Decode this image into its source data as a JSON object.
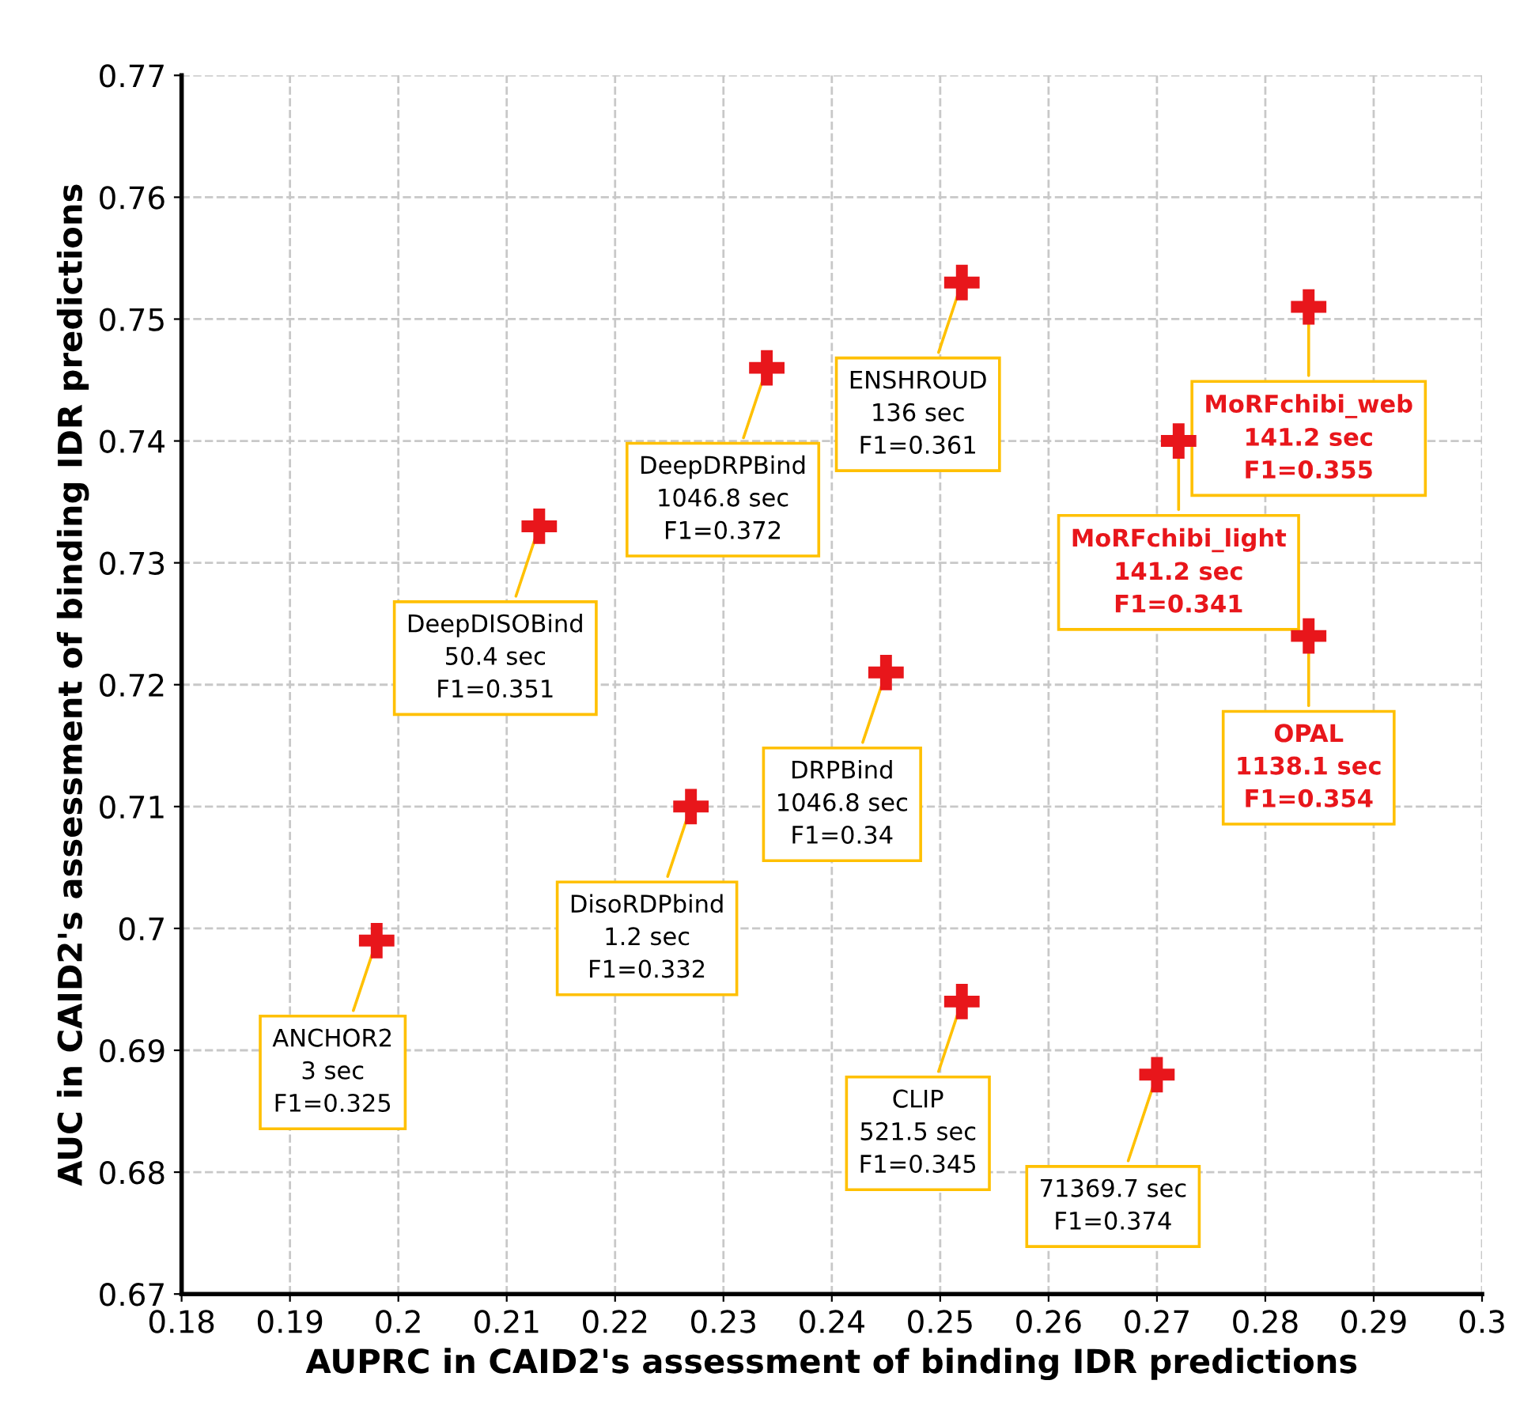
{
  "chart_data": {
    "type": "scatter",
    "xlabel": "AUPRC in CAID2's assessment of binding IDR predictions",
    "ylabel": "AUC in CAID2's assessment of binding IDR predictions",
    "xlim": [
      0.18,
      0.3
    ],
    "ylim": [
      0.67,
      0.77
    ],
    "xticks": [
      0.18,
      0.19,
      0.2,
      0.21,
      0.22,
      0.23,
      0.24,
      0.25,
      0.26,
      0.27,
      0.28,
      0.29,
      0.3
    ],
    "yticks": [
      0.67,
      0.68,
      0.69,
      0.7,
      0.71,
      0.72,
      0.73,
      0.74,
      0.75,
      0.76,
      0.77
    ],
    "grid": true,
    "marker": "cross",
    "legend": false,
    "series": [
      {
        "color": "#e8161b",
        "x": [
          0.198,
          0.213,
          0.227,
          0.234,
          0.245,
          0.252,
          0.252,
          0.27
        ],
        "values": [
          0.699,
          0.733,
          0.71,
          0.746,
          0.721,
          0.753,
          0.694,
          0.688
        ],
        "value_labels": [
          "ANCHOR2\n3 sec\nF1=0.325",
          "DeepDISOBind\n50.4 sec\nF1=0.351",
          "DisoRDPbind\n1.2 sec\nF1=0.332",
          "DeepDRPBind\n1046.8 sec\nF1=0.372",
          "DRPBind\n1046.8 sec\nF1=0.34",
          "ENSHROUD\n136 sec\nF1=0.361",
          "CLIP\n521.5 sec\nF1=0.345",
          "71369.7 sec\nF1=0.374"
        ]
      },
      {
        "color": "#e8161b",
        "x": [
          0.272,
          0.284,
          0.284
        ],
        "values": [
          0.74,
          0.751,
          0.724
        ],
        "value_labels": [
          "MoRFchibi_light\n141.2 sec\nF1=0.341",
          "MoRFchibi_web\n141.2 sec\nF1=0.355",
          "OPAL\n1138.1 sec\nF1=0.354"
        ]
      }
    ]
  }
}
